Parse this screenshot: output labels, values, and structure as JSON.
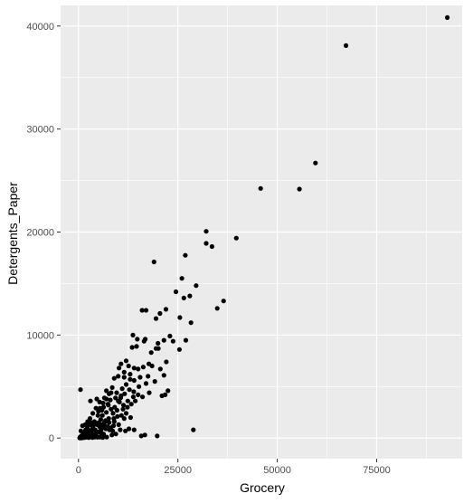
{
  "chart_data": {
    "type": "scatter",
    "xlabel": "Grocery",
    "ylabel": "Detergents_Paper",
    "xlim": [
      -4500,
      96500
    ],
    "ylim": [
      -2000,
      42000
    ],
    "x_ticks": [
      0,
      25000,
      50000,
      75000
    ],
    "x_tick_labels": [
      "0",
      "25000",
      "50000",
      "75000"
    ],
    "y_ticks": [
      0,
      10000,
      20000,
      30000,
      40000
    ],
    "y_tick_labels": [
      "0",
      "10000",
      "20000",
      "30000",
      "40000"
    ],
    "x_minor_ticks": [
      12500,
      37500,
      62500,
      87500
    ],
    "y_minor_ticks": [
      5000,
      15000,
      25000,
      35000
    ],
    "grid": true,
    "panel_background": "#ebebeb",
    "grid_color": "#ffffff",
    "point_color": "#000000",
    "points": [
      [
        92780,
        40827
      ],
      [
        67298,
        38102
      ],
      [
        59598,
        26701
      ],
      [
        45828,
        24231
      ],
      [
        55571,
        24171
      ],
      [
        32114,
        20070
      ],
      [
        39694,
        19410
      ],
      [
        32114,
        18900
      ],
      [
        33586,
        18594
      ],
      [
        19000,
        17100
      ],
      [
        26866,
        17740
      ],
      [
        26000,
        15500
      ],
      [
        29600,
        14800
      ],
      [
        24500,
        14200
      ],
      [
        36486,
        13308
      ],
      [
        26500,
        13600
      ],
      [
        28000,
        13800
      ],
      [
        34900,
        12600
      ],
      [
        16000,
        12400
      ],
      [
        17000,
        12400
      ],
      [
        22000,
        12500
      ],
      [
        20500,
        12100
      ],
      [
        19500,
        11600
      ],
      [
        28300,
        11200
      ],
      [
        25500,
        11700
      ],
      [
        13700,
        10000
      ],
      [
        23000,
        9900
      ],
      [
        23800,
        9400
      ],
      [
        20000,
        9200
      ],
      [
        14800,
        9600
      ],
      [
        27000,
        9500
      ],
      [
        21500,
        9500
      ],
      [
        16500,
        9400
      ],
      [
        13500,
        8800
      ],
      [
        14600,
        8900
      ],
      [
        20100,
        8700
      ],
      [
        25400,
        8600
      ],
      [
        19500,
        8700
      ],
      [
        10700,
        7200
      ],
      [
        12000,
        7500
      ],
      [
        10200,
        6800
      ],
      [
        11500,
        6400
      ],
      [
        12600,
        7000
      ],
      [
        14000,
        6800
      ],
      [
        15000,
        6700
      ],
      [
        16300,
        6900
      ],
      [
        17700,
        7200
      ],
      [
        18500,
        7000
      ],
      [
        22100,
        7400
      ],
      [
        20600,
        6700
      ],
      [
        21500,
        6100
      ],
      [
        19200,
        5500
      ],
      [
        17000,
        5300
      ],
      [
        15500,
        5900
      ],
      [
        14000,
        5600
      ],
      [
        13000,
        5700
      ],
      [
        11500,
        5900
      ],
      [
        10000,
        6000
      ],
      [
        9000,
        5800
      ],
      [
        8500,
        4900
      ],
      [
        7700,
        4300
      ],
      [
        7000,
        4600
      ],
      [
        9600,
        4400
      ],
      [
        10700,
        4100
      ],
      [
        11600,
        4300
      ],
      [
        12800,
        4700
      ],
      [
        13900,
        4500
      ],
      [
        15000,
        4200
      ],
      [
        16100,
        4000
      ],
      [
        17800,
        4400
      ],
      [
        21800,
        4200
      ],
      [
        22500,
        4600
      ],
      [
        21000,
        4100
      ],
      [
        6500,
        3900
      ],
      [
        8000,
        3700
      ],
      [
        9300,
        3900
      ],
      [
        10300,
        3500
      ],
      [
        11300,
        3200
      ],
      [
        12300,
        3000
      ],
      [
        13300,
        3300
      ],
      [
        14300,
        3600
      ],
      [
        7500,
        3200
      ],
      [
        8200,
        2800
      ],
      [
        6300,
        3000
      ],
      [
        5300,
        3500
      ],
      [
        5900,
        2700
      ],
      [
        7000,
        2500
      ],
      [
        8700,
        2400
      ],
      [
        9700,
        2700
      ],
      [
        10800,
        2200
      ],
      [
        12000,
        2400
      ],
      [
        13100,
        2000
      ],
      [
        11500,
        1900
      ],
      [
        4900,
        2200
      ],
      [
        5600,
        1800
      ],
      [
        6800,
        1700
      ],
      [
        7700,
        1500
      ],
      [
        9000,
        1600
      ],
      [
        10100,
        1300
      ],
      [
        4000,
        1600
      ],
      [
        4700,
        1300
      ],
      [
        5300,
        1100
      ],
      [
        6100,
        1000
      ],
      [
        6900,
        900
      ],
      [
        7800,
        800
      ],
      [
        8600,
        700
      ],
      [
        3100,
        1300
      ],
      [
        3600,
        1000
      ],
      [
        4200,
        800
      ],
      [
        4900,
        600
      ],
      [
        5600,
        500
      ],
      [
        6300,
        400
      ],
      [
        2300,
        900
      ],
      [
        2800,
        700
      ],
      [
        3300,
        500
      ],
      [
        3900,
        300
      ],
      [
        4500,
        200
      ],
      [
        1600,
        600
      ],
      [
        2000,
        400
      ],
      [
        2500,
        250
      ],
      [
        3000,
        150
      ],
      [
        1100,
        300
      ],
      [
        1500,
        200
      ],
      [
        900,
        100
      ],
      [
        700,
        200
      ],
      [
        1300,
        400
      ],
      [
        1800,
        800
      ],
      [
        2200,
        1100
      ],
      [
        2700,
        1300
      ],
      [
        3200,
        1500
      ],
      [
        3700,
        1200
      ],
      [
        4300,
        1400
      ],
      [
        5100,
        1500
      ],
      [
        5800,
        1300
      ],
      [
        6600,
        1200
      ],
      [
        7300,
        1100
      ],
      [
        8100,
        1000
      ],
      [
        8800,
        1200
      ],
      [
        500,
        4700
      ],
      [
        3000,
        3600
      ],
      [
        4600,
        3800
      ],
      [
        1000,
        1200
      ],
      [
        600,
        700
      ],
      [
        400,
        100
      ],
      [
        300,
        0
      ],
      [
        1200,
        50
      ],
      [
        2000,
        80
      ],
      [
        2600,
        50
      ],
      [
        3500,
        50
      ],
      [
        4100,
        100
      ],
      [
        4800,
        80
      ],
      [
        5400,
        100
      ],
      [
        6100,
        50
      ],
      [
        7100,
        100
      ],
      [
        8400,
        300
      ],
      [
        9400,
        400
      ],
      [
        10500,
        800
      ],
      [
        11800,
        700
      ],
      [
        12700,
        900
      ],
      [
        14000,
        800
      ],
      [
        15800,
        200
      ],
      [
        16700,
        300
      ],
      [
        19800,
        200
      ],
      [
        28900,
        800
      ],
      [
        10000,
        3600
      ],
      [
        10600,
        3900
      ],
      [
        11000,
        4800
      ],
      [
        12000,
        5200
      ],
      [
        13000,
        6200
      ],
      [
        9100,
        3000
      ],
      [
        7400,
        3300
      ],
      [
        6000,
        2200
      ],
      [
        5000,
        2600
      ],
      [
        4400,
        2900
      ],
      [
        3600,
        2400
      ],
      [
        2900,
        1900
      ],
      [
        2300,
        1600
      ],
      [
        1700,
        1300
      ],
      [
        8200,
        4400
      ],
      [
        7000,
        3800
      ],
      [
        6200,
        3400
      ],
      [
        5400,
        2900
      ],
      [
        16800,
        9600
      ],
      [
        18300,
        8300
      ],
      [
        17500,
        6000
      ],
      [
        15200,
        5000
      ],
      [
        13800,
        4000
      ],
      [
        12400,
        3600
      ],
      [
        11200,
        2800
      ],
      [
        9800,
        2100
      ],
      [
        8900,
        1900
      ],
      [
        7600,
        1900
      ],
      [
        6500,
        1500
      ],
      [
        5700,
        800
      ],
      [
        4500,
        500
      ],
      [
        3400,
        800
      ],
      [
        2700,
        600
      ],
      [
        2100,
        200
      ],
      [
        1500,
        50
      ],
      [
        800,
        0
      ]
    ]
  }
}
